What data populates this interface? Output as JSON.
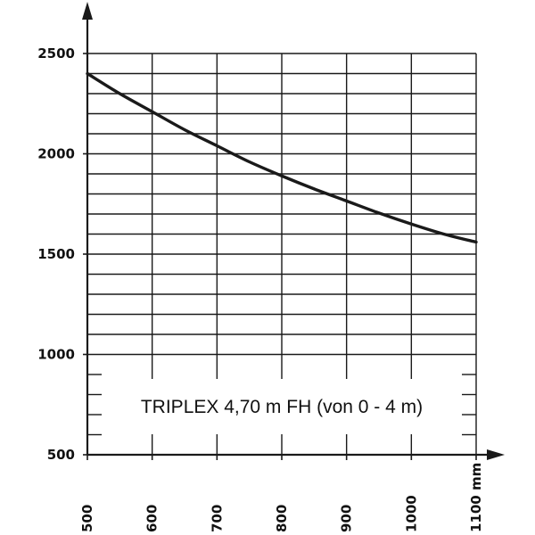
{
  "chart_data": {
    "type": "line",
    "title": "",
    "xlabel": "",
    "ylabel": "",
    "x_unit": "mm",
    "xlim": [
      500,
      1100
    ],
    "ylim": [
      500,
      2500
    ],
    "x_ticks": [
      {
        "value": 500,
        "label": "500"
      },
      {
        "value": 600,
        "label": "600"
      },
      {
        "value": 700,
        "label": "700"
      },
      {
        "value": 800,
        "label": "800"
      },
      {
        "value": 900,
        "label": "900"
      },
      {
        "value": 1000,
        "label": "1000"
      },
      {
        "value": 1100,
        "label": "1100 mm"
      }
    ],
    "y_ticks": [
      {
        "value": 500,
        "label": "500"
      },
      {
        "value": 1000,
        "label": "1000"
      },
      {
        "value": 1500,
        "label": "1500"
      },
      {
        "value": 2000,
        "label": "2000"
      },
      {
        "value": 2500,
        "label": "2500"
      }
    ],
    "grid": true,
    "grid_y_step": 100,
    "grid_y_range": [
      1000,
      2500
    ],
    "annotation": "TRIPLEX 4,70 m FH (von 0 - 4 m)",
    "series": [
      {
        "color": "#1a1a1a",
        "x": [
          500,
          550,
          600,
          650,
          700,
          750,
          800,
          850,
          900,
          950,
          1000,
          1050,
          1100
        ],
        "y": [
          2400,
          2300,
          2210,
          2120,
          2040,
          1960,
          1890,
          1825,
          1765,
          1705,
          1650,
          1600,
          1560
        ]
      }
    ]
  }
}
